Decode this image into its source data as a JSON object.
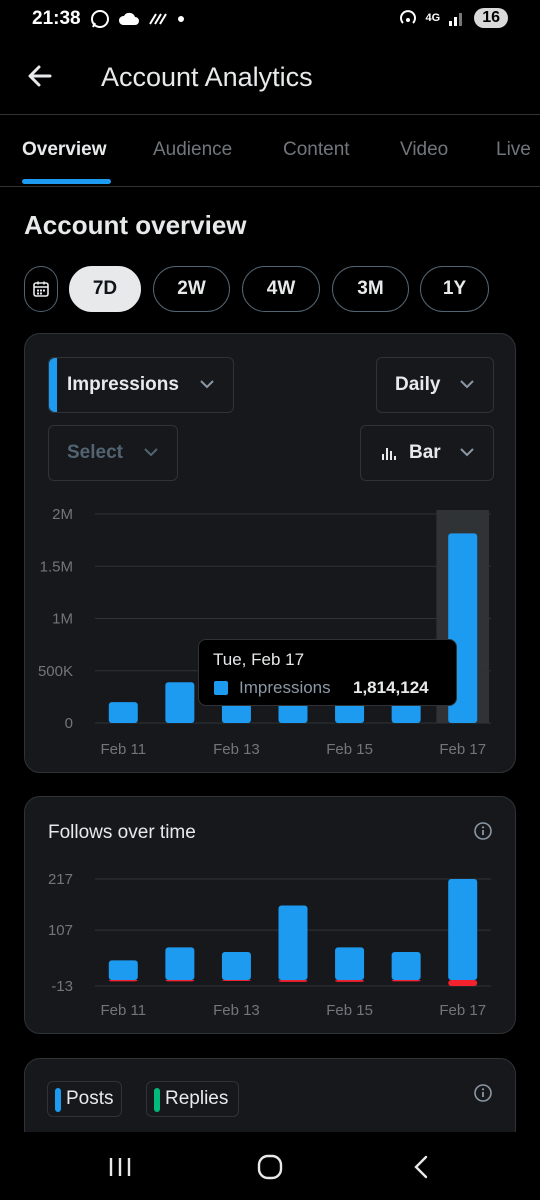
{
  "status_bar": {
    "time": "21:38",
    "network": "4G",
    "battery": "16",
    "icons": [
      "whatsapp-icon",
      "cloud-icon",
      "signal-stripes-icon",
      "dot-icon",
      "hotspot-icon",
      "network-arrows-icon",
      "signal-bars-icon",
      "battery-icon"
    ]
  },
  "header": {
    "title": "Account Analytics",
    "back_icon": "arrow-left-icon"
  },
  "tabs": [
    {
      "label": "Overview",
      "active": true
    },
    {
      "label": "Audience",
      "active": false
    },
    {
      "label": "Content",
      "active": false
    },
    {
      "label": "Video",
      "active": false
    },
    {
      "label": "Live",
      "active": false
    }
  ],
  "overview": {
    "title": "Account overview",
    "calendar_icon": "calendar-icon",
    "ranges": [
      {
        "label": "7D",
        "active": true
      },
      {
        "label": "2W",
        "active": false
      },
      {
        "label": "4W",
        "active": false
      },
      {
        "label": "3M",
        "active": false
      },
      {
        "label": "1Y",
        "active": false
      }
    ]
  },
  "impressions_card": {
    "metric_select": "Impressions",
    "interval_select": "Daily",
    "compare_select": "Select",
    "chart_type_select": "Bar",
    "tooltip": {
      "date": "Tue, Feb 17",
      "series": "Impressions",
      "value": "1,814,124"
    }
  },
  "follows_card": {
    "title": "Follows over time"
  },
  "posts_card": {
    "legend": [
      {
        "label": "Posts",
        "color": "#1d9bf0"
      },
      {
        "label": "Replies",
        "color": "#00ba7c"
      }
    ]
  },
  "colors": {
    "accent": "#1d9bf0",
    "negative": "#f4212e",
    "card_bg": "#16181c",
    "replies": "#00ba7c"
  },
  "chart_data": [
    {
      "type": "bar",
      "categories": [
        "Feb 11",
        "Feb 12",
        "Feb 13",
        "Feb 14",
        "Feb 15",
        "Feb 16",
        "Feb 17"
      ],
      "x_tick_labels": [
        "Feb 11",
        "Feb 13",
        "Feb 15",
        "Feb 17"
      ],
      "series": [
        {
          "name": "Impressions",
          "values": [
            200000,
            390000,
            200000,
            200000,
            200000,
            200000,
            1814124
          ]
        }
      ],
      "y_ticks": [
        0,
        500000,
        1000000,
        1500000,
        2000000
      ],
      "y_tick_labels": [
        "0",
        "500K",
        "1M",
        "1.5M",
        "2M"
      ],
      "ylim": [
        0,
        2000000
      ],
      "highlighted_category": "Feb 17",
      "grid": true
    },
    {
      "type": "bar",
      "title": "Follows over time",
      "categories": [
        "Feb 11",
        "Feb 12",
        "Feb 13",
        "Feb 14",
        "Feb 15",
        "Feb 16",
        "Feb 17"
      ],
      "x_tick_labels": [
        "Feb 11",
        "Feb 13",
        "Feb 15",
        "Feb 17"
      ],
      "series": [
        {
          "values": [
            42,
            70,
            60,
            160,
            70,
            60,
            217
          ],
          "color": "#1d9bf0"
        },
        {
          "values": [
            -3,
            -3,
            -2,
            -4,
            -4,
            -3,
            -13
          ],
          "color": "#f4212e"
        }
      ],
      "y_ticks": [
        -13,
        107,
        217
      ],
      "y_tick_labels": [
        "-13",
        "107",
        "217"
      ],
      "ylim": [
        -13,
        217
      ],
      "grid": true
    }
  ]
}
